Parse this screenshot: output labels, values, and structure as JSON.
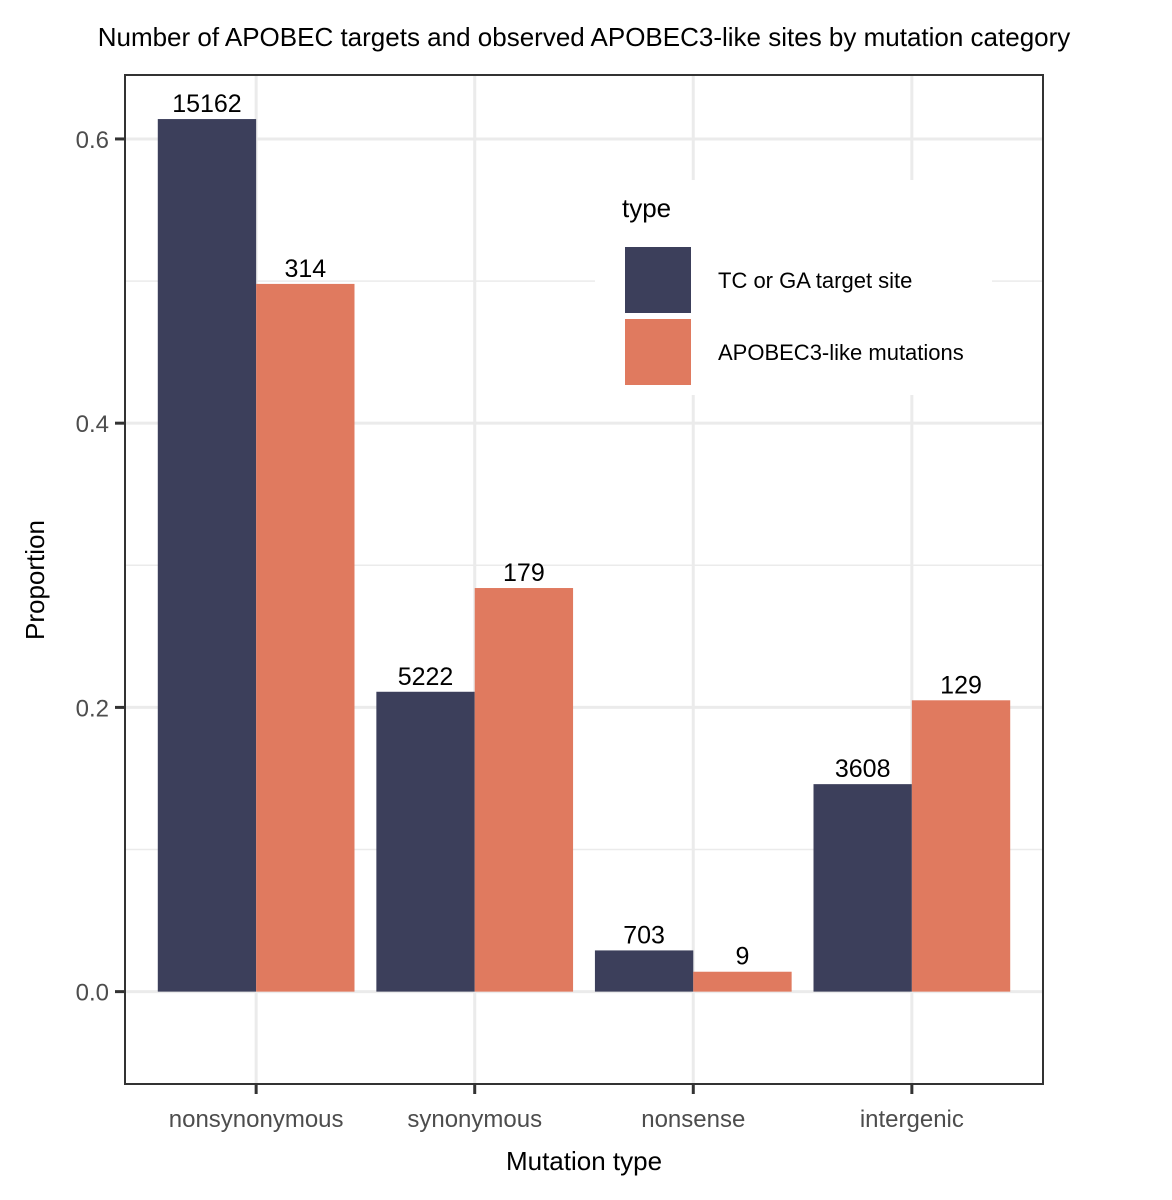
{
  "chart_data": {
    "type": "bar",
    "title": "Number of APOBEC targets and observed APOBEC3-like sites by mutation category",
    "xlabel": "Mutation type",
    "ylabel": "Proportion",
    "categories": [
      "nonsynonymous",
      "synonymous",
      "nonsense",
      "intergenic"
    ],
    "ylim": [
      -0.065,
      0.645
    ],
    "yticks": [
      0.0,
      0.2,
      0.4,
      0.6
    ],
    "ytick_labels": [
      "0.0",
      "0.2",
      "0.4",
      "0.6"
    ],
    "grid": true,
    "legend": {
      "title": "type",
      "position": "top-right"
    },
    "series": [
      {
        "name": "TC or GA target site",
        "color": "#3c3f5b",
        "values": [
          0.614,
          0.211,
          0.029,
          0.146
        ],
        "labels": [
          "15162",
          "5222",
          "703",
          "3608"
        ]
      },
      {
        "name": "APOBEC3-like mutations",
        "color": "#e07a5f",
        "values": [
          0.498,
          0.284,
          0.014,
          0.205
        ],
        "labels": [
          "314",
          "179",
          "9",
          "129"
        ]
      }
    ]
  }
}
